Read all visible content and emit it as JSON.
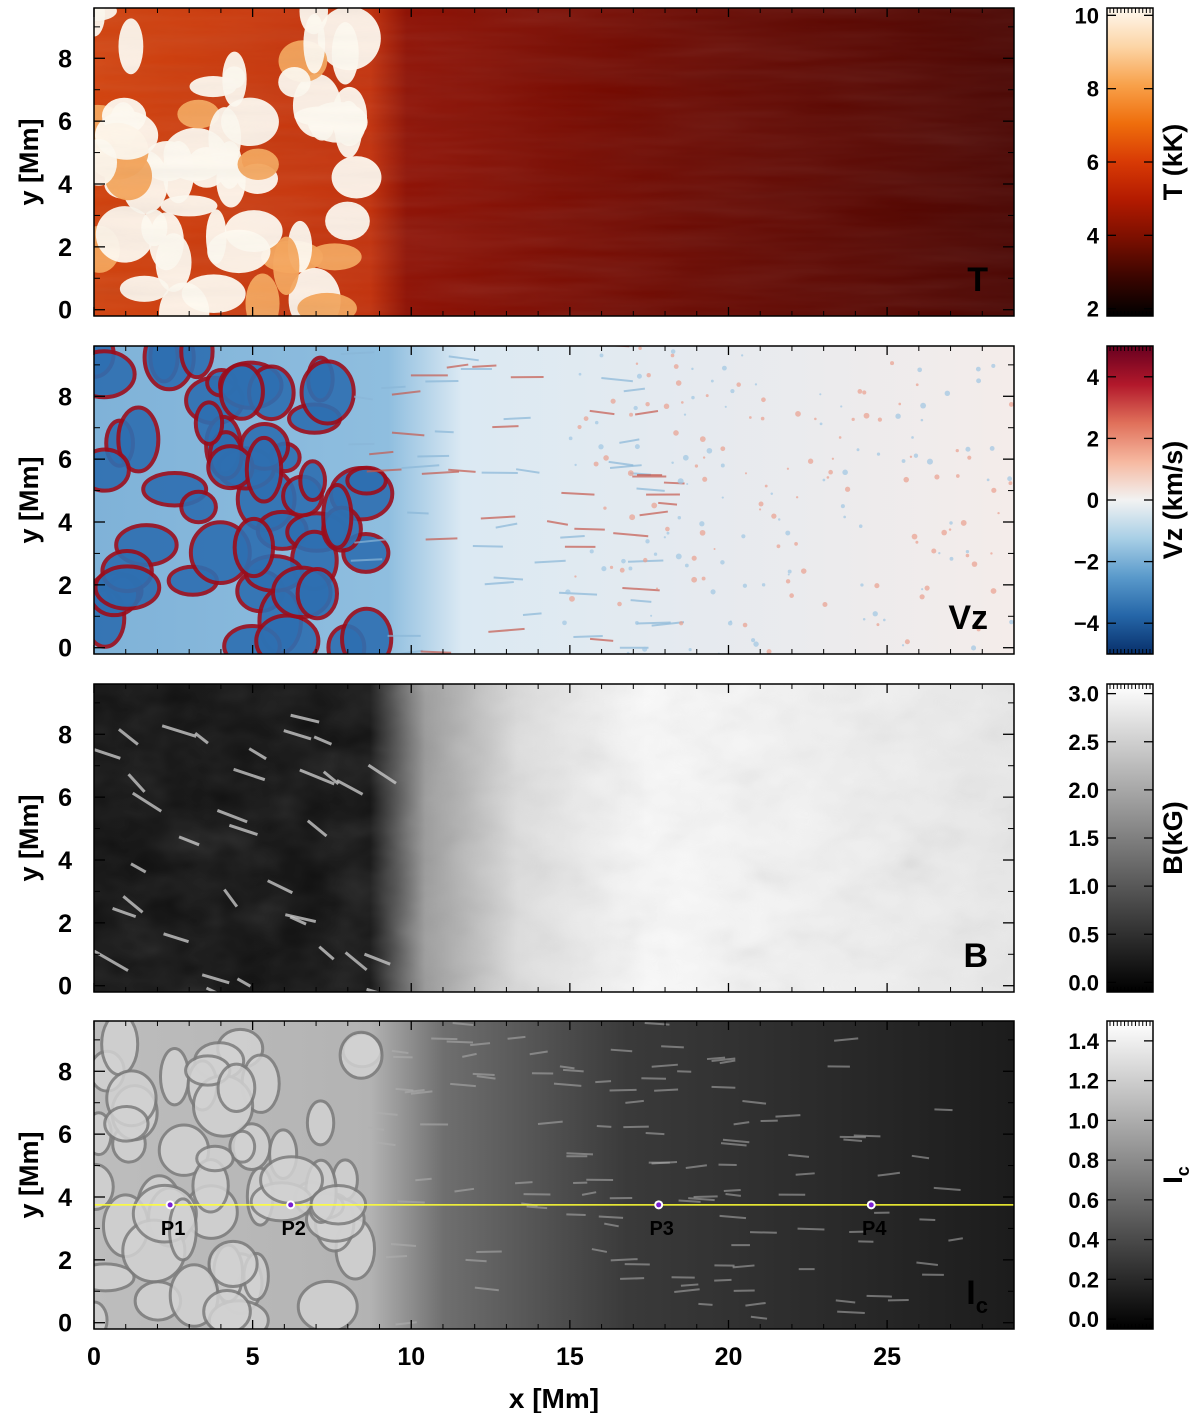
{
  "chart_data": {
    "type": "heatmap",
    "x_axis": {
      "label": "x [Mm]",
      "range": [
        0,
        29
      ],
      "ticks": [
        0,
        5,
        10,
        15,
        20,
        25
      ],
      "tick_labels": [
        "0",
        "5",
        "10",
        "15",
        "20",
        "25"
      ]
    },
    "panels": [
      {
        "id": "T",
        "panel_label": "T",
        "ylabel": "y [Mm]",
        "yrange": [
          -0.2,
          9.6
        ],
        "yticks": [
          0,
          2,
          4,
          6,
          8
        ],
        "ytick_labels": [
          "0",
          "2",
          "4",
          "6",
          "8"
        ],
        "colorbar": {
          "label": "T (kK)",
          "range": [
            1.8,
            10.2
          ],
          "ticks": [
            2,
            4,
            6,
            8,
            10
          ],
          "tick_labels": [
            "2",
            "4",
            "6",
            "8",
            "10"
          ],
          "colormap": [
            "#000000",
            "#3a0500",
            "#7a0f00",
            "#b21a00",
            "#d83a05",
            "#ef6e0c",
            "#f8a14a",
            "#fcd5a6",
            "#fff8ef"
          ]
        }
      },
      {
        "id": "Vz",
        "panel_label": "Vz",
        "ylabel": "y [Mm]",
        "yrange": [
          -0.2,
          9.6
        ],
        "yticks": [
          0,
          2,
          4,
          6,
          8
        ],
        "ytick_labels": [
          "0",
          "2",
          "4",
          "6",
          "8"
        ],
        "colorbar": {
          "label": "Vz (km/s)",
          "range": [
            -5,
            5
          ],
          "ticks": [
            -4,
            -2,
            0,
            2,
            4
          ],
          "tick_labels": [
            "−4",
            "−2",
            "0",
            "2",
            "4"
          ],
          "colormap": [
            "#08306b",
            "#2566a8",
            "#5a9acb",
            "#a8cfe6",
            "#f2f2f2",
            "#f6b8a0",
            "#e0705a",
            "#b2182b",
            "#67001f"
          ]
        }
      },
      {
        "id": "B",
        "panel_label": "B",
        "ylabel": "y [Mm]",
        "yrange": [
          -0.2,
          9.6
        ],
        "yticks": [
          0,
          2,
          4,
          6,
          8
        ],
        "ytick_labels": [
          "0",
          "2",
          "4",
          "6",
          "8"
        ],
        "colorbar": {
          "label": "B(kG)",
          "range": [
            -0.1,
            3.1
          ],
          "ticks": [
            0.0,
            0.5,
            1.0,
            1.5,
            2.0,
            2.5,
            3.0
          ],
          "tick_labels": [
            "0.0",
            "0.5",
            "1.0",
            "1.5",
            "2.0",
            "2.5",
            "3.0"
          ],
          "colormap": [
            "#000000",
            "#ffffff"
          ]
        }
      },
      {
        "id": "Ic",
        "panel_label": "I",
        "panel_label_sub": "c",
        "ylabel": "y [Mm]",
        "yrange": [
          -0.2,
          9.6
        ],
        "yticks": [
          0,
          2,
          4,
          6,
          8
        ],
        "ytick_labels": [
          "0",
          "2",
          "4",
          "6",
          "8"
        ],
        "colorbar": {
          "label": "I",
          "label_sub": "c",
          "range": [
            -0.05,
            1.5
          ],
          "ticks": [
            0.0,
            0.2,
            0.4,
            0.6,
            0.8,
            1.0,
            1.2,
            1.4
          ],
          "tick_labels": [
            "0.0",
            "0.2",
            "0.4",
            "0.6",
            "0.8",
            "1.0",
            "1.2",
            "1.4"
          ],
          "colormap": [
            "#000000",
            "#ffffff"
          ]
        },
        "cut_line": {
          "y": 3.75,
          "color": "#ffff33"
        },
        "points": [
          {
            "label": "P1",
            "x": 2.4,
            "y": 3.75
          },
          {
            "label": "P2",
            "x": 6.2,
            "y": 3.75
          },
          {
            "label": "P3",
            "x": 17.8,
            "y": 3.75
          },
          {
            "label": "P4",
            "x": 24.5,
            "y": 3.75
          }
        ]
      }
    ]
  }
}
